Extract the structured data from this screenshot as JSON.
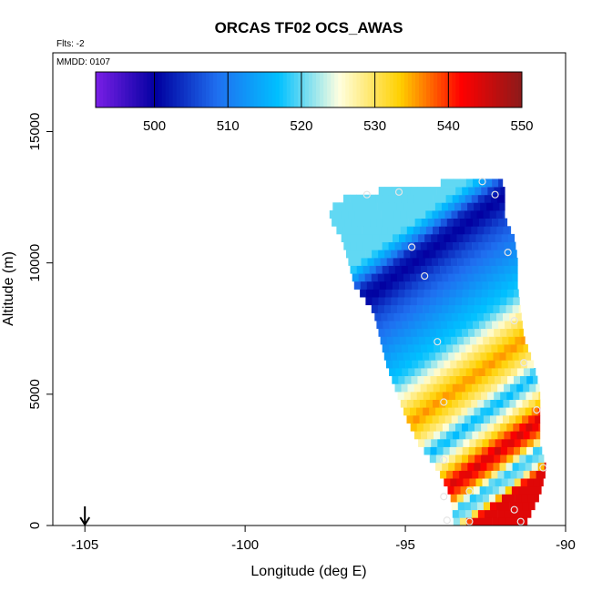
{
  "chart_data": {
    "type": "heatmap",
    "title": "ORCAS TF02 OCS_AWAS",
    "subtitle": "Flts: -2",
    "annotation": "MMDD: 0107",
    "xlabel": "Longitude (deg E)",
    "ylabel": "Altitude (m)",
    "xlim": [
      -106,
      -90
    ],
    "ylim": [
      0,
      18000
    ],
    "x_ticks": [
      -105,
      -100,
      -95,
      -90
    ],
    "x_tick_labels": [
      "-105",
      "-100",
      "-95",
      "-90"
    ],
    "y_ticks": [
      0,
      5000,
      10000,
      15000
    ],
    "y_tick_labels": [
      "0",
      "5000",
      "10000",
      "15000"
    ],
    "grid": false,
    "colorbar": {
      "position": "top",
      "range": [
        492,
        550
      ],
      "ticks": [
        500,
        510,
        520,
        530,
        540,
        550
      ],
      "tick_labels": [
        "500",
        "510",
        "520",
        "530",
        "540",
        "550"
      ],
      "colors": [
        "#7a1fe6",
        "#0000a0",
        "#1f6ff0",
        "#00c0ff",
        "#ffffe0",
        "#ffd000",
        "#ff0000",
        "#8b1a1a"
      ]
    },
    "marker": {
      "type": "arrow",
      "x": -105,
      "y": 0
    },
    "swath": {
      "altitude_step_m": 300,
      "rows": [
        {
          "alt": 13100,
          "lon_min": -92.3,
          "lon_max": -92.1
        },
        {
          "alt": 12800,
          "lon_min": -94.7,
          "lon_max": -91.9
        },
        {
          "alt": 12500,
          "lon_min": -96.4,
          "lon_max": -91.9
        },
        {
          "alt": 12200,
          "lon_min": -97.2,
          "lon_max": -91.9
        },
        {
          "alt": 11600,
          "lon_min": -97.4,
          "lon_max": -91.9
        },
        {
          "alt": 10800,
          "lon_min": -97.0,
          "lon_max": -91.6
        },
        {
          "alt": 10000,
          "lon_min": -96.8,
          "lon_max": -91.5
        },
        {
          "alt": 9000,
          "lon_min": -96.6,
          "lon_max": -91.5
        },
        {
          "alt": 8000,
          "lon_min": -96.0,
          "lon_max": -91.4
        },
        {
          "alt": 7000,
          "lon_min": -95.8,
          "lon_max": -91.3
        },
        {
          "alt": 6000,
          "lon_min": -95.6,
          "lon_max": -91.0
        },
        {
          "alt": 5000,
          "lon_min": -95.3,
          "lon_max": -90.8
        },
        {
          "alt": 4000,
          "lon_min": -95.0,
          "lon_max": -90.8
        },
        {
          "alt": 3000,
          "lon_min": -94.6,
          "lon_max": -90.8
        },
        {
          "alt": 2000,
          "lon_min": -94.0,
          "lon_max": -90.6
        },
        {
          "alt": 1000,
          "lon_min": -93.6,
          "lon_max": -90.8
        },
        {
          "alt": 0,
          "lon_min": -93.5,
          "lon_max": -91.2
        }
      ],
      "value_bands": [
        {
          "alt": 13100,
          "value": 520
        },
        {
          "alt": 12500,
          "value": 512
        },
        {
          "alt": 12000,
          "value": 503
        },
        {
          "alt": 11500,
          "value": 500
        },
        {
          "alt": 10500,
          "value": 506
        },
        {
          "alt": 9500,
          "value": 510
        },
        {
          "alt": 8500,
          "value": 514
        },
        {
          "alt": 7500,
          "value": 518
        },
        {
          "alt": 6500,
          "value": 528
        },
        {
          "alt": 5500,
          "value": 536
        },
        {
          "alt": 4500,
          "value": 528
        },
        {
          "alt": 3800,
          "value": 516
        },
        {
          "alt": 3200,
          "value": 525
        },
        {
          "alt": 2600,
          "value": 534
        },
        {
          "alt": 2000,
          "value": 545
        },
        {
          "alt": 1400,
          "value": 536
        },
        {
          "alt": 900,
          "value": 518
        },
        {
          "alt": 400,
          "value": 522
        },
        {
          "alt": 0,
          "value": 544
        }
      ],
      "band_slope_m_per_deg": 900
    },
    "flight_points": [
      {
        "lon": -96.2,
        "alt": 12600
      },
      {
        "lon": -95.2,
        "alt": 12700
      },
      {
        "lon": -92.6,
        "alt": 13100
      },
      {
        "lon": -92.2,
        "alt": 12600
      },
      {
        "lon": -94.8,
        "alt": 10600
      },
      {
        "lon": -94.4,
        "alt": 9500
      },
      {
        "lon": -91.8,
        "alt": 10400
      },
      {
        "lon": -91.6,
        "alt": 7800
      },
      {
        "lon": -94.0,
        "alt": 7000
      },
      {
        "lon": -91.3,
        "alt": 6200
      },
      {
        "lon": -93.8,
        "alt": 4700
      },
      {
        "lon": -90.9,
        "alt": 4400
      },
      {
        "lon": -93.8,
        "alt": 2500
      },
      {
        "lon": -90.7,
        "alt": 2200
      },
      {
        "lon": -93.0,
        "alt": 1300
      },
      {
        "lon": -93.8,
        "alt": 1100
      },
      {
        "lon": -91.6,
        "alt": 600
      },
      {
        "lon": -93.7,
        "alt": 200
      },
      {
        "lon": -93.0,
        "alt": 150
      },
      {
        "lon": -91.4,
        "alt": 150
      }
    ]
  }
}
